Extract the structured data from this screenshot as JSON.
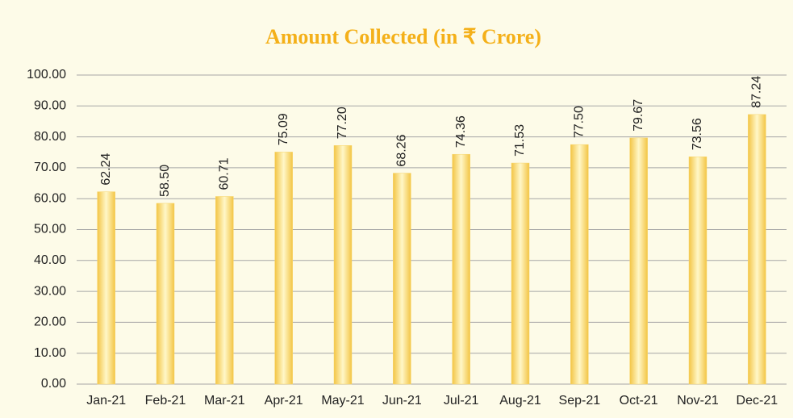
{
  "chart_data": {
    "type": "bar",
    "title": "Amount Collected (in ₹ Crore)",
    "categories": [
      "Jan-21",
      "Feb-21",
      "Mar-21",
      "Apr-21",
      "May-21",
      "Jun-21",
      "Jul-21",
      "Aug-21",
      "Sep-21",
      "Oct-21",
      "Nov-21",
      "Dec-21"
    ],
    "values": [
      62.24,
      58.5,
      60.71,
      75.09,
      77.2,
      68.26,
      74.36,
      71.53,
      77.5,
      79.67,
      73.56,
      87.24
    ],
    "value_labels": [
      "62.24",
      "58.50",
      "60.71",
      "75.09",
      "77.20",
      "68.26",
      "74.36",
      "71.53",
      "77.50",
      "79.67",
      "73.56",
      "87.24"
    ],
    "color": "#f7d56a",
    "ylim": [
      0,
      100
    ],
    "yticks": [
      {
        "value": 0,
        "label": "0.00"
      },
      {
        "value": 10,
        "label": "10.00"
      },
      {
        "value": 20,
        "label": "20.00"
      },
      {
        "value": 30,
        "label": "30.00"
      },
      {
        "value": 40,
        "label": "40.00"
      },
      {
        "value": 50,
        "label": "50.00"
      },
      {
        "value": 60,
        "label": "60.00"
      },
      {
        "value": 70,
        "label": "70.00"
      },
      {
        "value": 80,
        "label": "80.00"
      },
      {
        "value": 90,
        "label": "90.00"
      },
      {
        "value": 100,
        "label": "100.00"
      }
    ],
    "grid": true
  }
}
